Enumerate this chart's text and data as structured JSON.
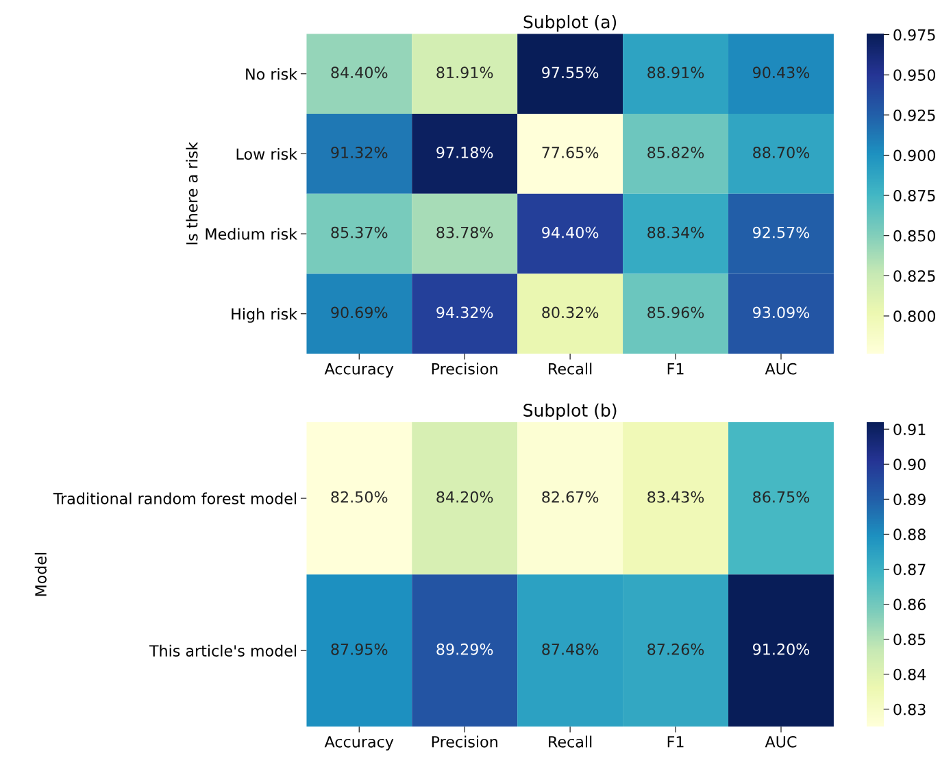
{
  "chart_data": [
    {
      "type": "heatmap",
      "title": "Subplot (a)",
      "ylabel": "Is there a risk",
      "categories": [
        "Accuracy",
        "Precision",
        "Recall",
        "F1",
        "AUC"
      ],
      "y_categories": [
        "No risk",
        "Low risk",
        "Medium risk",
        "High risk"
      ],
      "cells": [
        [
          0.844,
          0.8191,
          0.9755,
          0.8891,
          0.9043
        ],
        [
          0.9132,
          0.9718,
          0.7765,
          0.8582,
          0.887
        ],
        [
          0.8537,
          0.8378,
          0.944,
          0.8834,
          0.9257
        ],
        [
          0.9069,
          0.9432,
          0.8032,
          0.8596,
          0.9309
        ]
      ],
      "cell_labels": [
        [
          "84.40%",
          "81.91%",
          "97.55%",
          "88.91%",
          "90.43%"
        ],
        [
          "91.32%",
          "97.18%",
          "77.65%",
          "85.82%",
          "88.70%"
        ],
        [
          "85.37%",
          "83.78%",
          "94.40%",
          "88.34%",
          "92.57%"
        ],
        [
          "90.69%",
          "94.32%",
          "80.32%",
          "85.96%",
          "93.09%"
        ]
      ],
      "clim": [
        0.7765,
        0.9755
      ],
      "cticks": [
        {
          "value": 0.8,
          "label": "0.800"
        },
        {
          "value": 0.825,
          "label": "0.825"
        },
        {
          "value": 0.85,
          "label": "0.850"
        },
        {
          "value": 0.875,
          "label": "0.875"
        },
        {
          "value": 0.9,
          "label": "0.900"
        },
        {
          "value": 0.925,
          "label": "0.925"
        },
        {
          "value": 0.95,
          "label": "0.950"
        },
        {
          "value": 0.975,
          "label": "0.975"
        }
      ]
    },
    {
      "type": "heatmap",
      "title": "Subplot (b)",
      "ylabel": "Model",
      "categories": [
        "Accuracy",
        "Precision",
        "Recall",
        "F1",
        "AUC"
      ],
      "y_categories": [
        "Traditional random forest model",
        "This article's model"
      ],
      "cells": [
        [
          0.825,
          0.842,
          0.8267,
          0.8343,
          0.8675
        ],
        [
          0.8795,
          0.8929,
          0.8748,
          0.8726,
          0.912
        ]
      ],
      "cell_labels": [
        [
          "82.50%",
          "84.20%",
          "82.67%",
          "83.43%",
          "86.75%"
        ],
        [
          "87.95%",
          "89.29%",
          "87.48%",
          "87.26%",
          "91.20%"
        ]
      ],
      "clim": [
        0.825,
        0.912
      ],
      "cticks": [
        0.83,
        0.84,
        0.85,
        0.86,
        0.87,
        0.88,
        0.89,
        {
          "value": 0.9,
          "label": "0.90"
        },
        0.91
      ]
    }
  ]
}
